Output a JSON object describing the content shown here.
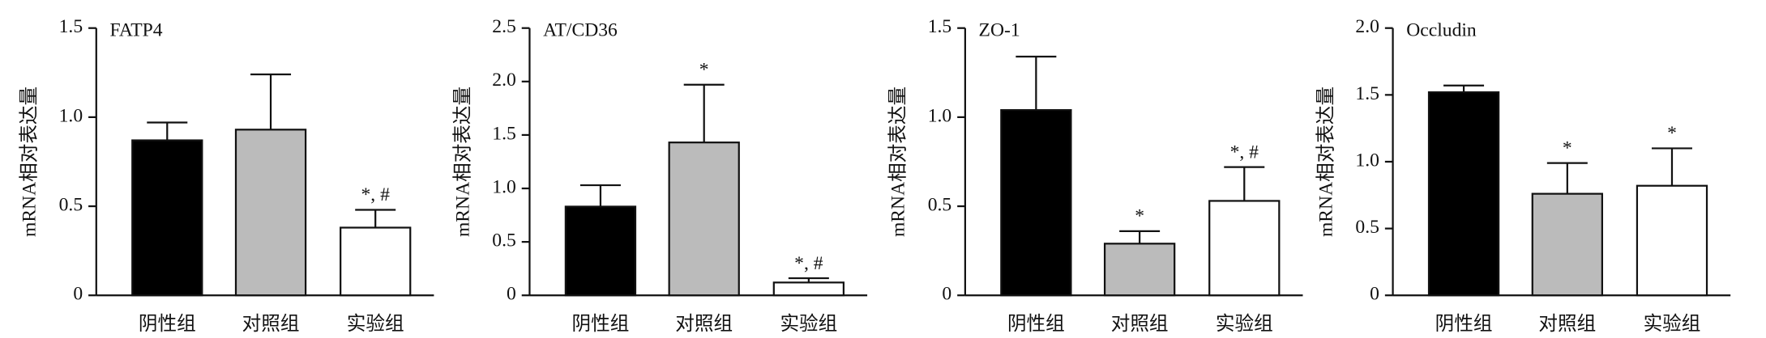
{
  "chart_data": [
    {
      "type": "bar",
      "title": "FATP4",
      "y_label": "mRNA相对表达量",
      "categories": [
        "阴性组",
        "对照组",
        "实验组"
      ],
      "values": [
        0.87,
        0.93,
        0.38
      ],
      "errors": [
        0.1,
        0.31,
        0.1
      ],
      "annotations": [
        null,
        null,
        "*, #"
      ],
      "colors": [
        "#000000",
        "#bbbbbb",
        "#ffffff"
      ],
      "ylim": [
        0,
        1.5
      ],
      "yticks": [
        0,
        0.5,
        {
          "value": 1,
          "label": "1.0"
        },
        1.5
      ]
    },
    {
      "type": "bar",
      "title": "AT/CD36",
      "y_label": "mRNA相对表达量",
      "categories": [
        "阴性组",
        "对照组",
        "实验组"
      ],
      "values": [
        0.83,
        1.43,
        0.12
      ],
      "errors": [
        0.2,
        0.54,
        0.04
      ],
      "annotations": [
        null,
        "*",
        "*, #"
      ],
      "colors": [
        "#000000",
        "#bbbbbb",
        "#ffffff"
      ],
      "ylim": [
        0,
        2.5
      ],
      "yticks": [
        0,
        0.5,
        {
          "value": 1,
          "label": "1.0"
        },
        1.5,
        {
          "value": 2,
          "label": "2.0"
        },
        2.5
      ]
    },
    {
      "type": "bar",
      "title": "ZO-1",
      "y_label": "mRNA相对表达量",
      "categories": [
        "阴性组",
        "对照组",
        "实验组"
      ],
      "values": [
        1.04,
        0.29,
        0.53
      ],
      "errors": [
        0.3,
        0.07,
        0.19
      ],
      "annotations": [
        null,
        "*",
        "*, #"
      ],
      "colors": [
        "#000000",
        "#bbbbbb",
        "#ffffff"
      ],
      "ylim": [
        0,
        1.5
      ],
      "yticks": [
        0,
        0.5,
        {
          "value": 1,
          "label": "1.0"
        },
        1.5
      ]
    },
    {
      "type": "bar",
      "title": "Occludin",
      "y_label": "mRNA相对表达量",
      "categories": [
        "阴性组",
        "对照组",
        "实验组"
      ],
      "values": [
        1.52,
        0.76,
        0.82
      ],
      "errors": [
        0.05,
        0.23,
        0.28
      ],
      "annotations": [
        null,
        "*",
        "*"
      ],
      "colors": [
        "#000000",
        "#bbbbbb",
        "#ffffff"
      ],
      "ylim": [
        0,
        2
      ],
      "yticks": [
        0,
        0.5,
        {
          "value": 1,
          "label": "1.0"
        },
        1.5,
        {
          "value": 2,
          "label": "2.0"
        }
      ]
    }
  ]
}
